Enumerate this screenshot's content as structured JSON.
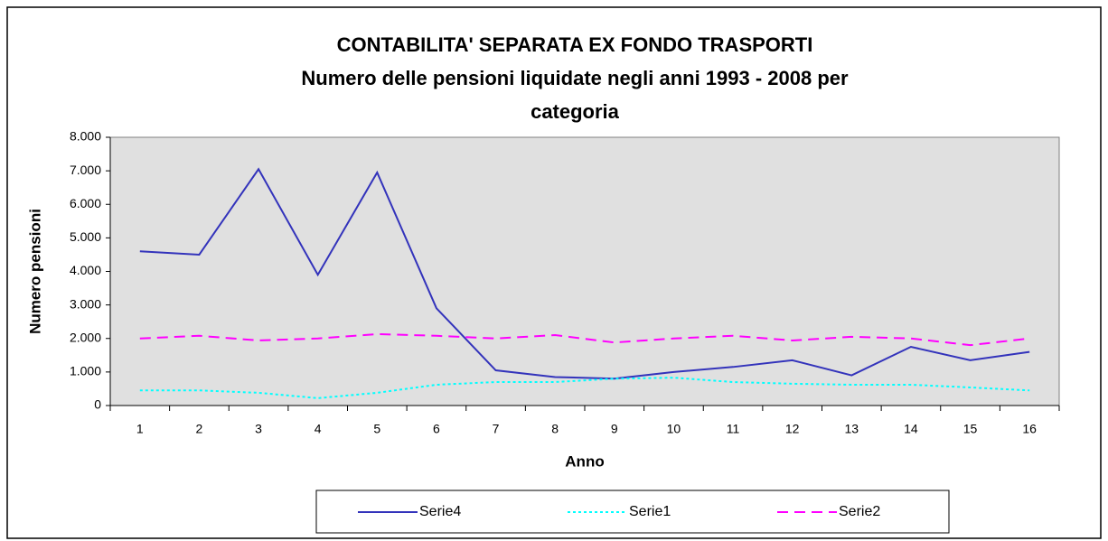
{
  "chart_data": {
    "type": "line",
    "title": [
      "CONTABILITA' SEPARATA EX FONDO TRASPORTI",
      "Numero delle pensioni  liquidate negli anni 1993 - 2008 per",
      "categoria"
    ],
    "xlabel": "Anno",
    "ylabel": "Numero pensioni",
    "categories": [
      "1",
      "2",
      "3",
      "4",
      "5",
      "6",
      "7",
      "8",
      "9",
      "10",
      "11",
      "12",
      "13",
      "14",
      "15",
      "16"
    ],
    "series": [
      {
        "name": "Serie4",
        "color": "#3333bb",
        "dash": "solid",
        "values": [
          4600,
          4500,
          7050,
          3900,
          6950,
          2900,
          1050,
          850,
          800,
          1000,
          1150,
          1350,
          900,
          1750,
          1350,
          1600
        ]
      },
      {
        "name": "Serie1",
        "color": "#00ffff",
        "dash": "dotted",
        "values": [
          450,
          450,
          380,
          220,
          380,
          620,
          700,
          700,
          800,
          830,
          700,
          650,
          620,
          620,
          540,
          450
        ]
      },
      {
        "name": "Serie2",
        "color": "#ff00ff",
        "dash": "dashed",
        "values": [
          2000,
          2080,
          1940,
          2000,
          2130,
          2080,
          2000,
          2100,
          1880,
          2000,
          2080,
          1940,
          2050,
          2000,
          1800,
          2000
        ]
      }
    ],
    "ylim": [
      0,
      8000
    ],
    "yticks": [
      0,
      {
        "value": 1000,
        "label": "1.000"
      },
      {
        "value": 2000,
        "label": "2.000"
      },
      {
        "value": 3000,
        "label": "3.000"
      },
      {
        "value": 4000,
        "label": "4.000"
      },
      {
        "value": 5000,
        "label": "5.000"
      },
      {
        "value": 6000,
        "label": "6.000"
      },
      {
        "value": 7000,
        "label": "7.000"
      },
      {
        "value": 8000,
        "label": "8.000"
      }
    ],
    "plot_background": "#e0e0e0",
    "legend": "bottom"
  }
}
